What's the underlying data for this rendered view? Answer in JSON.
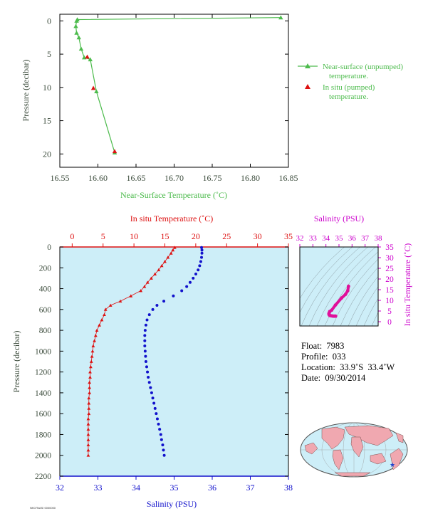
{
  "colors": {
    "near_surface": "#4cbb4c",
    "temperature": "#dd1111",
    "salinity": "#1111cc",
    "ts_curve": "#e0109a",
    "salinity_axis": "#cc00cc",
    "panel_bg": "#cdeef8",
    "axis_text": "#3a4a3a"
  },
  "chart_data": [
    {
      "type": "line",
      "xlabel": "Near-Surface Temperature (˚C)",
      "ylabel": "Pressure (decibar)",
      "xlim": [
        16.55,
        16.85
      ],
      "ylim": [
        22,
        -1
      ],
      "xticks": [
        "16.55",
        "16.60",
        "16.65",
        "16.70",
        "16.75",
        "16.80",
        "16.85"
      ],
      "yticks": [
        "0",
        "5",
        "10",
        "15",
        "20"
      ],
      "legend_position": "right",
      "series": [
        {
          "name": "Near-surface (unpumped) temperature.",
          "marker": "triangle",
          "color": "green",
          "x": [
            16.84,
            16.573,
            16.572,
            16.571,
            16.572,
            16.575,
            16.578,
            16.582,
            16.59,
            16.598,
            16.622
          ],
          "y": [
            -0.5,
            -0.2,
            0.0,
            0.8,
            1.8,
            2.5,
            4.2,
            5.5,
            5.8,
            10.6,
            19.8
          ]
        },
        {
          "name": "In situ (pumped) temperature.",
          "marker": "triangle",
          "color": "red",
          "x": [
            16.586,
            16.594,
            16.622
          ],
          "y": [
            5.4,
            10.1,
            19.6
          ]
        }
      ]
    },
    {
      "type": "line",
      "ylabel": "Pressure (decibar)",
      "ylim": [
        2200,
        0
      ],
      "yticks": [
        "0",
        "200",
        "400",
        "600",
        "800",
        "1000",
        "1200",
        "1400",
        "1600",
        "1800",
        "2000",
        "2200"
      ],
      "top_axis": {
        "label": "In situ Temperature (˚C)",
        "range": [
          -2,
          35
        ],
        "ticks": [
          "0",
          "5",
          "10",
          "15",
          "20",
          "25",
          "30",
          "35"
        ]
      },
      "bottom_axis": {
        "label": "Salinity (PSU)",
        "range": [
          32,
          38
        ],
        "ticks": [
          "32",
          "33",
          "34",
          "35",
          "36",
          "37",
          "38"
        ]
      },
      "series": [
        {
          "name": "In situ Temperature",
          "marker": "triangle",
          "axis": "top",
          "pressure": [
            5,
            30,
            60,
            100,
            140,
            180,
            220,
            260,
            300,
            340,
            380,
            420,
            470,
            520,
            560,
            600,
            650,
            700,
            750,
            800,
            850,
            900,
            950,
            1000,
            1050,
            1100,
            1150,
            1200,
            1250,
            1300,
            1350,
            1400,
            1450,
            1500,
            1550,
            1600,
            1650,
            1700,
            1750,
            1800,
            1850,
            1900,
            1950,
            2000
          ],
          "values": [
            16.6,
            16.3,
            16.0,
            15.5,
            15.0,
            14.5,
            14.0,
            13.4,
            12.8,
            12.2,
            11.7,
            11.1,
            9.5,
            7.8,
            6.2,
            5.4,
            5.2,
            4.8,
            4.4,
            4.0,
            3.8,
            3.6,
            3.4,
            3.3,
            3.2,
            3.1,
            3.0,
            2.9,
            2.9,
            2.8,
            2.8,
            2.8,
            2.7,
            2.7,
            2.7,
            2.7,
            2.6,
            2.6,
            2.6,
            2.6,
            2.6,
            2.6,
            2.6,
            2.6
          ]
        },
        {
          "name": "Salinity",
          "marker": "circle",
          "axis": "bottom",
          "pressure": [
            5,
            30,
            60,
            100,
            140,
            180,
            220,
            260,
            300,
            340,
            380,
            420,
            470,
            520,
            560,
            600,
            650,
            700,
            750,
            800,
            850,
            900,
            950,
            1000,
            1050,
            1100,
            1150,
            1200,
            1250,
            1300,
            1350,
            1400,
            1450,
            1500,
            1550,
            1600,
            1650,
            1700,
            1750,
            1800,
            1850,
            1900,
            1950,
            2000
          ],
          "values": [
            35.72,
            35.73,
            35.73,
            35.72,
            35.7,
            35.67,
            35.63,
            35.57,
            35.5,
            35.42,
            35.33,
            35.2,
            34.98,
            34.73,
            34.55,
            34.44,
            34.35,
            34.29,
            34.26,
            34.24,
            34.23,
            34.23,
            34.23,
            34.24,
            34.25,
            34.26,
            34.28,
            34.3,
            34.32,
            34.35,
            34.38,
            34.41,
            34.44,
            34.47,
            34.5,
            34.53,
            34.56,
            34.59,
            34.62,
            34.65,
            34.67,
            34.7,
            34.72,
            34.74
          ]
        }
      ]
    },
    {
      "type": "scatter",
      "title": "Salinity (PSU)",
      "ylabel": "In situ Temperature (˚C)",
      "xlim": [
        32,
        38
      ],
      "ylim": [
        -2,
        35
      ],
      "xticks": [
        "32",
        "33",
        "34",
        "35",
        "36",
        "37",
        "38"
      ],
      "yticks": [
        "0",
        "5",
        "10",
        "15",
        "20",
        "25",
        "30",
        "35"
      ],
      "curve": {
        "salinity": [
          35.73,
          35.67,
          35.5,
          35.2,
          34.73,
          34.44,
          34.29,
          34.24,
          34.23,
          34.25,
          34.3,
          34.38,
          34.47,
          34.56,
          34.65,
          34.74
        ],
        "temperature": [
          16.6,
          14.5,
          12.8,
          11.1,
          7.8,
          5.4,
          4.8,
          4.0,
          3.6,
          3.2,
          2.9,
          2.8,
          2.7,
          2.6,
          2.6,
          2.6
        ]
      }
    }
  ],
  "info": {
    "float": "Float:  7983",
    "profile": "Profile:  033",
    "location": "Location:  33.9˚S  33.4˚W",
    "date": "Date:  09/30/2014"
  },
  "footer": "NK07NAS/ 0000000"
}
